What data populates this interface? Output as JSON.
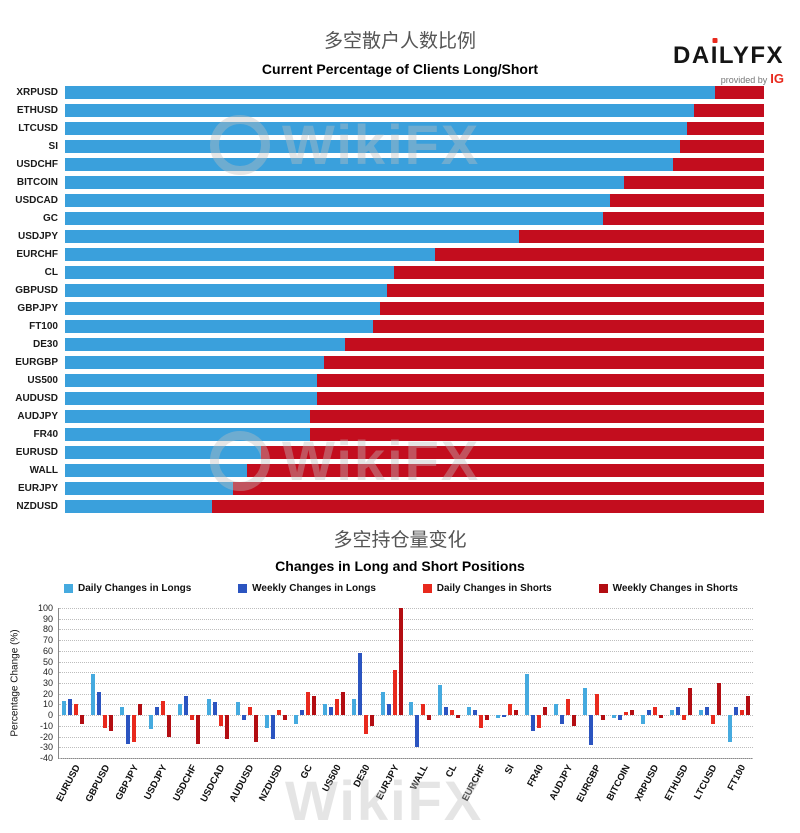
{
  "watermark": {
    "text": "WikiFX"
  },
  "header": {
    "title_cn": "多空散户人数比例",
    "title_en": "Current Percentage of Clients Long/Short",
    "logo": {
      "da": "DA",
      "i": "I",
      "lyfx": "LYFX",
      "provided": "provided by",
      "ig": "IG"
    }
  },
  "section2": {
    "title_cn": "多空持仓量变化",
    "title_en": "Changes in Long and Short Positions"
  },
  "colors": {
    "long_blue": "#3AA0DC",
    "short_red": "#C30D1E",
    "daily_long": "#45AADF",
    "weekly_long": "#2B54C0",
    "daily_short": "#E8291D",
    "weekly_short": "#B30D12"
  },
  "chart_data": [
    {
      "type": "bar",
      "orientation": "horizontal",
      "stacked": true,
      "title": "Current Percentage of Clients Long/Short",
      "xlim": [
        0,
        100
      ],
      "categories": [
        "XRPUSD",
        "ETHUSD",
        "LTCUSD",
        "SI",
        "USDCHF",
        "BITCOIN",
        "USDCAD",
        "GC",
        "USDJPY",
        "EURCHF",
        "CL",
        "GBPUSD",
        "GBPJPY",
        "FT100",
        "DE30",
        "EURGBP",
        "US500",
        "AUDUSD",
        "AUDJPY",
        "FR40",
        "EURUSD",
        "WALL",
        "EURJPY",
        "NZDUSD"
      ],
      "series": [
        {
          "name": "Percent Long",
          "color": "#3AA0DC",
          "values": [
            93,
            90,
            89,
            88,
            87,
            80,
            78,
            77,
            65,
            53,
            47,
            46,
            45,
            44,
            40,
            37,
            36,
            36,
            35,
            35,
            28,
            26,
            24,
            21
          ]
        },
        {
          "name": "Percent Short",
          "color": "#C30D1E",
          "values": [
            7,
            10,
            11,
            12,
            13,
            20,
            22,
            23,
            35,
            47,
            53,
            54,
            55,
            56,
            60,
            63,
            64,
            64,
            65,
            65,
            72,
            74,
            76,
            79
          ]
        }
      ]
    },
    {
      "type": "bar",
      "title": "Changes in Long and Short Positions",
      "ylabel": "Percentage Change (%)",
      "ylim": [
        -40,
        100
      ],
      "ytick_step": 10,
      "grid": "horizontal-dotted",
      "legend_position": "top",
      "categories": [
        "EURUSD",
        "GBPUSD",
        "GBPJPY",
        "USDJPY",
        "USDCHF",
        "USDCAD",
        "AUDUSD",
        "NZDUSD",
        "GC",
        "US500",
        "DE30",
        "EURJPY",
        "WALL",
        "CL",
        "EURCHF",
        "SI",
        "FR40",
        "AUDJPY",
        "EURGBP",
        "BITCOIN",
        "XRPUSD",
        "ETHUSD",
        "LTCUSD",
        "FT100"
      ],
      "series": [
        {
          "name": "Daily Changes in Longs",
          "color": "#45AADF",
          "values": [
            13,
            38,
            8,
            -13,
            10,
            15,
            12,
            -12,
            -8,
            10,
            15,
            22,
            12,
            28,
            8,
            -3,
            38,
            10,
            25,
            -3,
            -8,
            5,
            5,
            -25
          ]
        },
        {
          "name": "Weekly Changes in Longs",
          "color": "#2B54C0",
          "values": [
            15,
            22,
            -27,
            8,
            18,
            12,
            -5,
            -22,
            5,
            8,
            58,
            10,
            -30,
            8,
            5,
            -2,
            -15,
            -8,
            -28,
            -5,
            5,
            8,
            8,
            8
          ]
        },
        {
          "name": "Daily Changes in Shorts",
          "color": "#E8291D",
          "values": [
            10,
            -12,
            -25,
            13,
            -5,
            -10,
            8,
            5,
            22,
            15,
            -18,
            42,
            10,
            5,
            -12,
            10,
            -12,
            15,
            20,
            3,
            8,
            -5,
            -8,
            5
          ]
        },
        {
          "name": "Weekly Changes in Shorts",
          "color": "#B30D12",
          "values": [
            -8,
            -15,
            10,
            -20,
            -27,
            -22,
            -25,
            -5,
            18,
            22,
            -10,
            100,
            -5,
            -3,
            -5,
            5,
            8,
            -10,
            -5,
            5,
            -3,
            25,
            30,
            18
          ]
        }
      ]
    }
  ]
}
